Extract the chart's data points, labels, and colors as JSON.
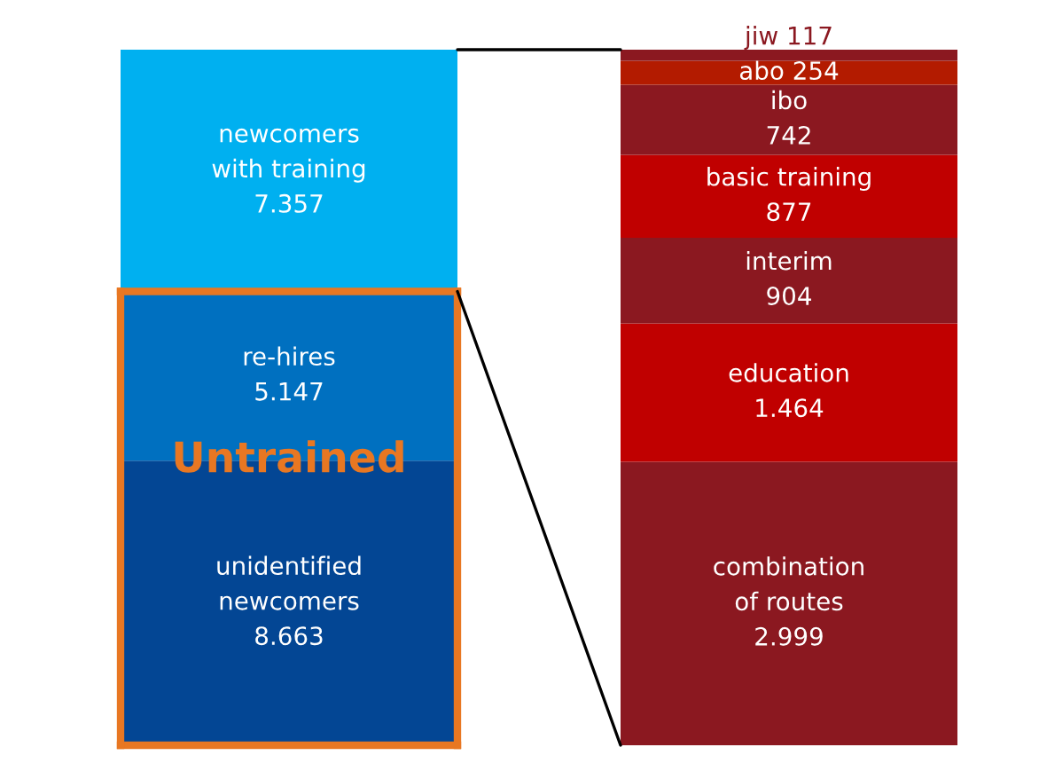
{
  "chart_data": [
    {
      "type": "bar",
      "stacked": true,
      "categories": [
        null
      ],
      "annotations": [
        "Untrained"
      ],
      "series": [
        {
          "name": "unidentified\nnewcomers",
          "color": "#034694",
          "values": [
            8663
          ],
          "value_labels": [
            "8.663"
          ]
        },
        {
          "name": "re-hires",
          "color": "#0070c0",
          "values": [
            5147
          ],
          "value_labels": [
            "5.147"
          ]
        },
        {
          "name": "newcomers\nwith training",
          "color": "#00b0f0",
          "values": [
            7357
          ],
          "value_labels": [
            "7.357"
          ]
        }
      ]
    },
    {
      "type": "bar",
      "stacked": true,
      "categories": [
        null
      ],
      "series": [
        {
          "name": "combination\nof routes",
          "color": "#8b1820",
          "values": [
            2999
          ],
          "value_labels": [
            "2.999"
          ]
        },
        {
          "name": "education",
          "color": "#c00000",
          "values": [
            1464
          ],
          "value_labels": [
            "1.464"
          ]
        },
        {
          "name": "interim",
          "color": "#8b1820",
          "values": [
            904
          ],
          "value_labels": [
            "904"
          ]
        },
        {
          "name": "basic training",
          "color": "#c00000",
          "values": [
            877
          ],
          "value_labels": [
            "877"
          ]
        },
        {
          "name": "ibo",
          "color": "#8b1820",
          "values": [
            742
          ],
          "value_labels": [
            "742"
          ]
        },
        {
          "name": "abo",
          "color": "#b31b00",
          "values": [
            254
          ],
          "value_labels": [
            "254"
          ]
        },
        {
          "name": "jiw",
          "color": "#8b1820",
          "values": [
            117
          ],
          "value_labels": [
            "117"
          ]
        }
      ]
    }
  ]
}
